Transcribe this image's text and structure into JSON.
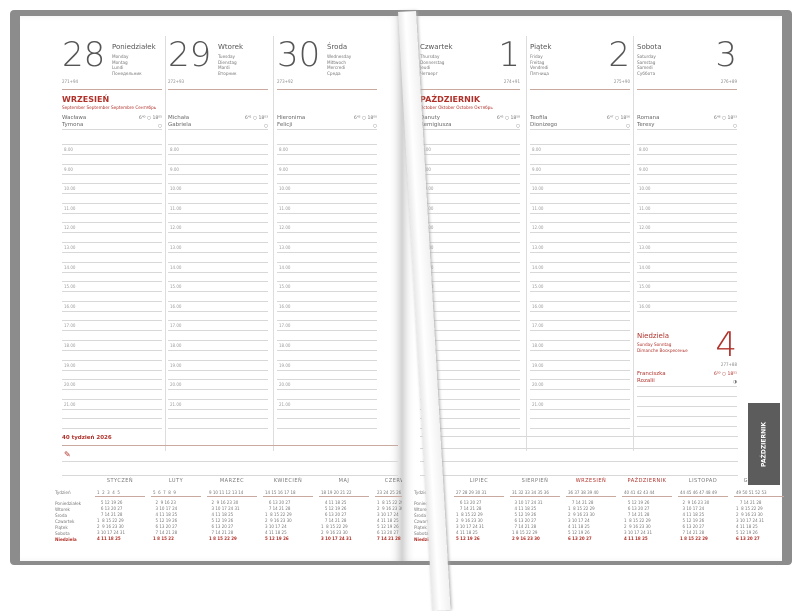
{
  "left": {
    "days": [
      {
        "num": "28",
        "name": "Poniedziałek",
        "tr": [
          "Monday",
          "Montag",
          "Lundi",
          "Понедельник"
        ],
        "count": "271+94",
        "month": "WRZESIEŃ",
        "month_tr": "September  September  Septembre  Сентябрь",
        "names": [
          "Wacława",
          "Tymona"
        ],
        "sun": "6⁴⁰ ○ 18⁰⁵"
      },
      {
        "num": "29",
        "name": "Wtorek",
        "tr": [
          "Tuesday",
          "Dienstag",
          "Mardi",
          "Вторник"
        ],
        "count": "272+93",
        "names": [
          "Michała",
          "Gabriela"
        ],
        "sun": "6⁴¹ ○ 18⁰³"
      },
      {
        "num": "30",
        "name": "Środa",
        "tr": [
          "Wednesday",
          "Mittwoch",
          "Mercredi",
          "Среда"
        ],
        "count": "273+92",
        "names": [
          "Hieronima",
          "Felicji"
        ],
        "sun": "6⁴³ ○ 18⁰⁰"
      }
    ],
    "week": "40 tydzień 2026"
  },
  "right": {
    "days": [
      {
        "num": "1",
        "name": "Czwartek",
        "tr": [
          "Thursday",
          "Donnerstag",
          "Jeudi",
          "Четверг"
        ],
        "count": "274+91",
        "month": "PAŹDZIERNIK",
        "month_tr": "October  Oktober  Octobre  Октябрь",
        "names": [
          "Danuty",
          "Remigiusza"
        ],
        "sun": "6⁴⁵ ○ 18⁵⁸"
      },
      {
        "num": "2",
        "name": "Piątek",
        "tr": [
          "Friday",
          "Freitag",
          "Vendredi",
          "Пятница"
        ],
        "count": "275+90",
        "names": [
          "Teofila",
          "Dionizego"
        ],
        "sun": "6⁴⁷ ○ 18⁵⁶"
      },
      {
        "num": "3",
        "name": "Sobota",
        "tr": [
          "Saturday",
          "Samstag",
          "Samedi",
          "Суббота"
        ],
        "count": "276+89",
        "names": [
          "Romana",
          "Teresy"
        ],
        "sun": "6⁴⁸ ○ 18⁵³"
      }
    ],
    "sunday": {
      "num": "4",
      "name": "Niedziela",
      "tr": [
        "Sunday Sonntag",
        "Dimanche Воскресенье"
      ],
      "count": "277+88",
      "names": [
        "Franciszka",
        "Rozalii"
      ],
      "sun": "6⁵⁰ ○ 18⁵¹"
    },
    "tab": "PAŹDZIERNIK"
  },
  "times": [
    "8.00",
    "9.00",
    "10.00",
    "11.00",
    "12.00",
    "13.00",
    "14.00",
    "15.00",
    "16.00",
    "17.00",
    "18.00",
    "19.00",
    "20.00",
    "21.00"
  ],
  "weekdays": [
    "Tydzień",
    "Poniedziałek",
    "Wtorek",
    "Środa",
    "Czwartek",
    "Piątek",
    "Sobota",
    "Niedziela"
  ],
  "calendar": [
    {
      "name": "STYCZEŃ",
      "weeks": "1  2  3  4  5",
      "rows": [
        "   5 12 19 26",
        "   6 13 20 27",
        "   7 14 21 28",
        "1  8 15 22 29",
        "2  9 16 23 30",
        "3 10 17 24 31",
        "4 11 18 25"
      ]
    },
    {
      "name": "LUTY",
      "weeks": "5  6  7  8  9",
      "rows": [
        "  2  9 16 23",
        "  3 10 17 24",
        "  4 11 18 25",
        "  5 12 19 26",
        "  6 13 20 27",
        "  7 14 21 28",
        "1 8 15 22"
      ]
    },
    {
      "name": "MARZEC",
      "weeks": "9 10 11 12 13 14",
      "rows": [
        "  2  9 16 23 30",
        "  3 10 17 24 31",
        "  4 11 18 25",
        "  5 12 19 26",
        "  6 13 20 27",
        "  7 14 21 28",
        "1 8 15 22 29"
      ]
    },
    {
      "name": "KWIECIEŃ",
      "weeks": "14 15 16 17 18",
      "rows": [
        "   6 13 20 27",
        "   7 14 21 28",
        "1  8 15 22 29",
        "2  9 16 23 30",
        "3 10 17 24",
        "4 11 18 25",
        "5 12 19 26"
      ]
    },
    {
      "name": "MAJ",
      "weeks": "18 19 20 21 22",
      "rows": [
        "   4 11 18 25",
        "   5 12 19 26",
        "   6 13 20 27",
        "   7 14 21 28",
        "1  8 15 22 29",
        "2  9 16 23 30",
        "3 10 17 24 31"
      ]
    },
    {
      "name": "CZERWIEC",
      "weeks": "23 24 25 26 27",
      "rows": [
        "1  8 15 22 29",
        "2  9 16 23 30",
        "3 10 17 24",
        "4 11 18 25",
        "5 12 19 26",
        "6 13 20 27",
        "7 14 21 28"
      ]
    },
    {
      "name": "LIPIEC",
      "weeks": "27 28 29 30 31",
      "rows": [
        "   6 13 20 27",
        "   7 14 21 28",
        "1  8 15 22 29",
        "2  9 16 23 30",
        "3 10 17 24 31",
        "4 11 18 25",
        "5 12 19 26"
      ]
    },
    {
      "name": "SIERPIEŃ",
      "weeks": "31 32 33 34 35 36",
      "rows": [
        "  3 10 17 24 31",
        "  4 11 18 25",
        "  5 12 19 26",
        "  6 13 20 27",
        "  7 14 21 28",
        "1 8 15 22 29",
        "2 9 16 23 30"
      ]
    },
    {
      "name": "WRZESIEŃ",
      "weeks": "36 37 38 39 40",
      "rows": [
        "   7 14 21 28",
        "1  8 15 22 29",
        "2  9 16 23 30",
        "3 10 17 24",
        "4 11 18 25",
        "5 12 19 26",
        "6 13 20 27"
      ]
    },
    {
      "name": "PAŹDZIERNIK",
      "weeks": "40 41 42 43 44",
      "rows": [
        "   5 12 19 26",
        "   6 13 20 27",
        "   7 14 21 28",
        "1  8 15 22 29",
        "2  9 16 23 30",
        "3 10 17 24 31",
        "4 11 18 25"
      ]
    },
    {
      "name": "LISTOPAD",
      "weeks": "44 45 46 47 48 49",
      "rows": [
        "  2  9 16 23 30",
        "  3 10 17 24",
        "  4 11 18 25",
        "  5 12 19 26",
        "  6 13 20 27",
        "  7 14 21 28",
        "1 8 15 22 29"
      ]
    },
    {
      "name": "GRUDZIEŃ",
      "weeks": "49 50 51 52 53",
      "rows": [
        "   7 14 21 28",
        "1  8 15 22 29",
        "2  9 16 23 30",
        "3 10 17 24 31",
        "4 11 18 25",
        "5 12 19 26",
        "6 13 20 27"
      ]
    }
  ],
  "colors": {
    "accent": "#b0312a",
    "cover": "#8c8c8c",
    "tab": "#5c5c5c"
  }
}
